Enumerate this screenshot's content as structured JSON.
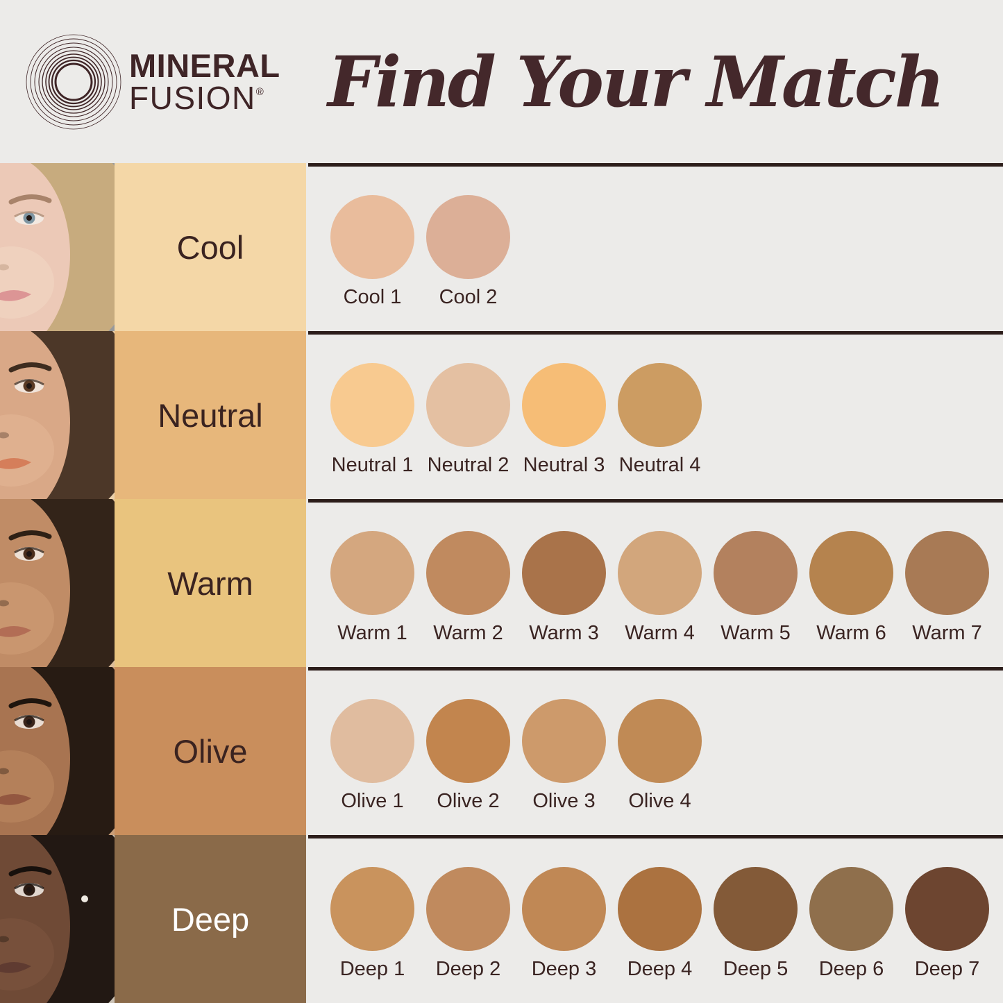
{
  "header": {
    "brand": {
      "line1": "MINERAL",
      "line2": "FUSION",
      "registered": "®"
    },
    "title": "Find Your Match"
  },
  "colors": {
    "page_bg": "#ecebe9",
    "divider": "#2c1d1a",
    "brand_text": "#3f2527",
    "title_text": "#44282b",
    "swatch_label_text": "#3a2422"
  },
  "rows": [
    {
      "id": "cool",
      "label": "Cool",
      "label_bg": "#f4d7a7",
      "label_color": "#3a2320",
      "face": {
        "bg": "#98999b",
        "hair": "#c7ab7e",
        "skin": "#ecc9b7",
        "cheek": "#f2d7c4",
        "brow": "#a8836a",
        "iris": "#7d95a2",
        "lips": "#dc9595",
        "earring": false
      },
      "swatches": [
        {
          "name": "Cool 1",
          "color": "#e9bc9c"
        },
        {
          "name": "Cool 2",
          "color": "#dcaf97"
        }
      ]
    },
    {
      "id": "neutral",
      "label": "Neutral",
      "label_bg": "#e7b77b",
      "label_color": "#3a2320",
      "face": {
        "bg": "#ead0ab",
        "hair": "#4c3728",
        "skin": "#d9a887",
        "cheek": "#e3b795",
        "brow": "#3e2c1f",
        "iris": "#5a3a24",
        "lips": "#d57e5a",
        "earring": false
      },
      "swatches": [
        {
          "name": "Neutral 1",
          "color": "#f8ca90"
        },
        {
          "name": "Neutral 2",
          "color": "#e4c0a2"
        },
        {
          "name": "Neutral 3",
          "color": "#f6bd76"
        },
        {
          "name": "Neutral 4",
          "color": "#cc9c62"
        }
      ]
    },
    {
      "id": "warm",
      "label": "Warm",
      "label_bg": "#e9c47e",
      "label_color": "#3a2320",
      "face": {
        "bg": "#dcbd99",
        "hair": "#332419",
        "skin": "#c08c66",
        "cheek": "#cf9f76",
        "brow": "#2e2015",
        "iris": "#4a2e1c",
        "lips": "#b26d55",
        "earring": false
      },
      "swatches": [
        {
          "name": "Warm 1",
          "color": "#d4a77f"
        },
        {
          "name": "Warm 2",
          "color": "#c08a5f"
        },
        {
          "name": "Warm 3",
          "color": "#a9734a"
        },
        {
          "name": "Warm 4",
          "color": "#d2a67c"
        },
        {
          "name": "Warm 5",
          "color": "#b3815e"
        },
        {
          "name": "Warm 6",
          "color": "#b5834e"
        },
        {
          "name": "Warm 7",
          "color": "#a87a55"
        }
      ]
    },
    {
      "id": "olive",
      "label": "Olive",
      "label_bg": "#c98e5c",
      "label_color": "#3a2320",
      "face": {
        "bg": "#c99e78",
        "hair": "#271b13",
        "skin": "#a87451",
        "cheek": "#bd8a62",
        "brow": "#1f150e",
        "iris": "#3a241a",
        "lips": "#935740",
        "earring": false
      },
      "swatches": [
        {
          "name": "Olive 1",
          "color": "#e0bc9f"
        },
        {
          "name": "Olive 2",
          "color": "#c2854e"
        },
        {
          "name": "Olive 3",
          "color": "#cd9a6b"
        },
        {
          "name": "Olive 4",
          "color": "#c08a55"
        }
      ]
    },
    {
      "id": "deep",
      "label": "Deep",
      "label_bg": "#8a6a49",
      "label_color": "#ffffff",
      "face": {
        "bg": "#cbc2b6",
        "hair": "#221813",
        "skin": "#6f4a36",
        "cheek": "#7e5640",
        "brow": "#17100c",
        "iris": "#2a1a12",
        "lips": "#5f3b31",
        "earring": true
      },
      "swatches": [
        {
          "name": "Deep 1",
          "color": "#c9935d"
        },
        {
          "name": "Deep 2",
          "color": "#c08a5e"
        },
        {
          "name": "Deep 3",
          "color": "#c08855"
        },
        {
          "name": "Deep 4",
          "color": "#ab7240"
        },
        {
          "name": "Deep 5",
          "color": "#835a38"
        },
        {
          "name": "Deep 6",
          "color": "#8f6f4c"
        },
        {
          "name": "Deep 7",
          "color": "#6d4530"
        }
      ]
    }
  ]
}
